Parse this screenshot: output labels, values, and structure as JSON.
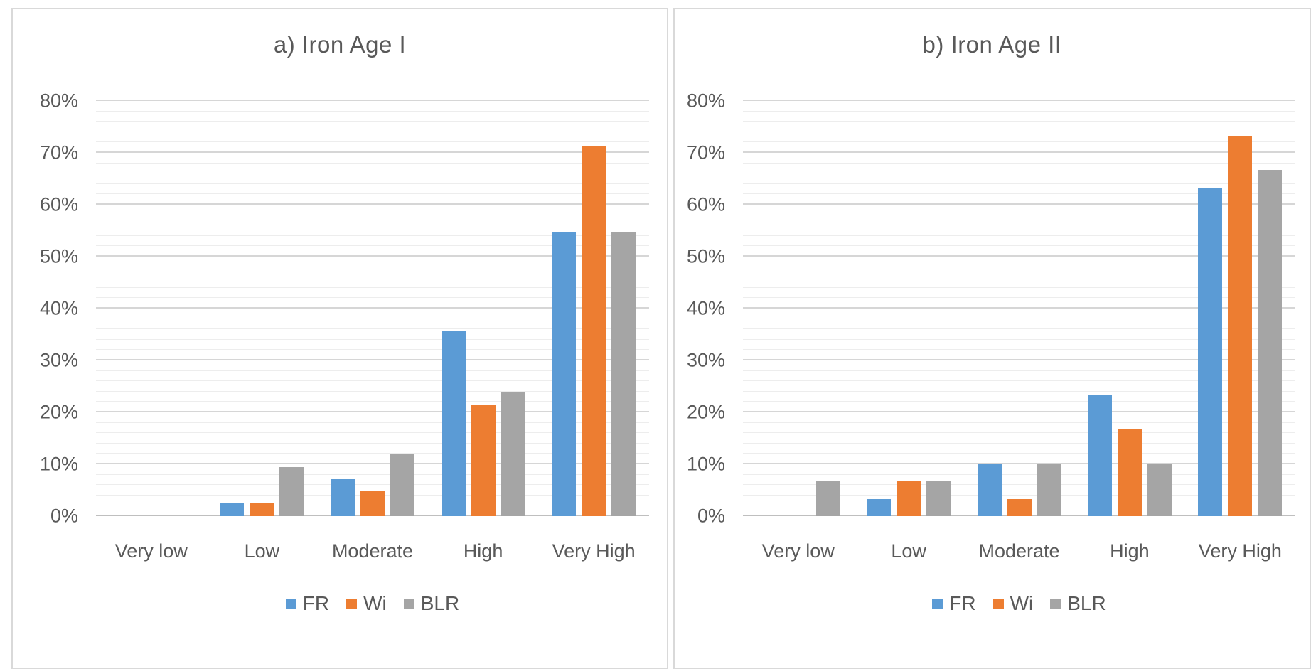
{
  "figure": {
    "background": "#ffffff",
    "panel_border_color": "#d9d9d9",
    "text_color": "#595959",
    "major_gridline_color": "#d6d6d6",
    "minor_gridline_color": "#ededed",
    "axis_line_color": "#bfbfbf"
  },
  "chart_data": [
    {
      "type": "bar",
      "title": "a) Iron Age I",
      "categories": [
        "Very low",
        "Low",
        "Moderate",
        "High",
        "Very High"
      ],
      "series": [
        {
          "name": "FR",
          "color": "#5b9bd5",
          "values": [
            0,
            2.4,
            7.1,
            35.7,
            54.8
          ]
        },
        {
          "name": "Wi",
          "color": "#ed7d31",
          "values": [
            0,
            2.4,
            4.8,
            21.4,
            71.4
          ]
        },
        {
          "name": "BLR",
          "color": "#a5a5a5",
          "values": [
            0,
            9.5,
            11.9,
            23.8,
            54.8
          ]
        }
      ],
      "ylim": [
        0,
        80
      ],
      "ytick_step": 10,
      "minor_step": 2,
      "ytick_labels": [
        "0%",
        "10%",
        "20%",
        "30%",
        "40%",
        "50%",
        "60%",
        "70%",
        "80%"
      ],
      "legend": [
        "FR",
        "Wi",
        "BLR"
      ],
      "legend_position": "bottom",
      "grid": true
    },
    {
      "type": "bar",
      "title": "b) Iron Age II",
      "categories": [
        "Very low",
        "Low",
        "Moderate",
        "High",
        "Very High"
      ],
      "series": [
        {
          "name": "FR",
          "color": "#5b9bd5",
          "values": [
            0,
            3.3,
            10.0,
            23.3,
            63.3
          ]
        },
        {
          "name": "Wi",
          "color": "#ed7d31",
          "values": [
            0,
            6.7,
            3.3,
            16.7,
            73.3
          ]
        },
        {
          "name": "BLR",
          "color": "#a5a5a5",
          "values": [
            6.7,
            6.7,
            10.0,
            10.0,
            66.7
          ]
        }
      ],
      "ylim": [
        0,
        80
      ],
      "ytick_step": 10,
      "minor_step": 2,
      "ytick_labels": [
        "0%",
        "10%",
        "20%",
        "30%",
        "40%",
        "50%",
        "60%",
        "70%",
        "80%"
      ],
      "legend": [
        "FR",
        "Wi",
        "BLR"
      ],
      "legend_position": "bottom",
      "grid": true
    }
  ]
}
